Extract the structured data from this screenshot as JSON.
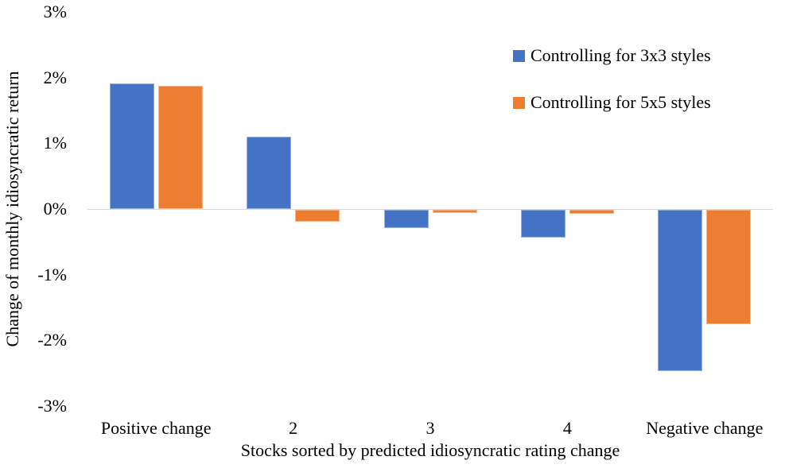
{
  "page": {
    "background": "#FFFFFF"
  },
  "chart_data": {
    "type": "bar",
    "title": "",
    "categories": [
      "Positive change",
      "2",
      "3",
      "4",
      "Negative change"
    ],
    "series": [
      {
        "name": "Controlling for 3x3 styles",
        "color": "#4472C4",
        "values": [
          1.91,
          1.1,
          -0.28,
          -0.42,
          -2.46
        ]
      },
      {
        "name": "Controlling for 5x5 styles",
        "color": "#ED7D31",
        "values": [
          1.88,
          -0.18,
          -0.05,
          -0.06,
          -1.74
        ]
      }
    ],
    "xlabel": "Stocks sorted by predicted idiosyncratic rating change",
    "ylabel": "Change of monthly idiosyncratic return",
    "unit": "%",
    "ylim": [
      -3,
      3
    ],
    "yticks": [
      {
        "value": 3,
        "label": "3%"
      },
      {
        "value": 2,
        "label": "2%"
      },
      {
        "value": 1,
        "label": "1%"
      },
      {
        "value": 0,
        "label": "0%"
      },
      {
        "value": -1,
        "label": "-1%"
      },
      {
        "value": -2,
        "label": "-2%"
      },
      {
        "value": -3,
        "label": "-3%"
      }
    ],
    "grid": "zero-line-only",
    "gridline_color": "#D9D9D9",
    "text_color": "#000000",
    "legend_position": "top-right"
  }
}
